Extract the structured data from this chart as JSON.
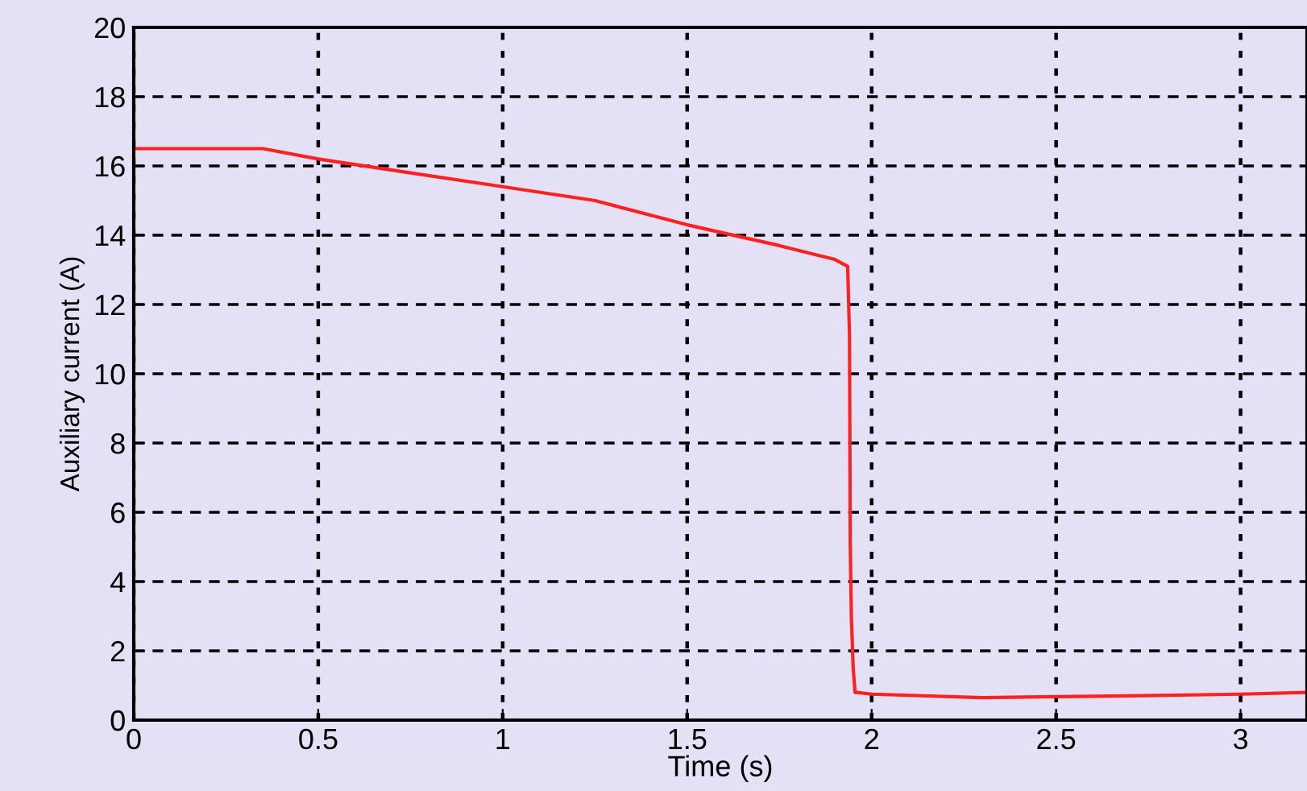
{
  "chart_data": {
    "type": "line",
    "xlabel": "Time (s)",
    "ylabel": "Auxiliary current (A)",
    "xlim": [
      0,
      3.18
    ],
    "xticks": [
      0,
      0.5,
      1,
      1.5,
      2,
      2.5,
      3
    ],
    "ylim": [
      0,
      20
    ],
    "yticks": [
      0,
      2,
      4,
      6,
      8,
      10,
      12,
      14,
      16,
      18,
      20
    ],
    "grid": true,
    "legend": false,
    "line_style": "solid",
    "marker": "none",
    "series": [
      {
        "color": "#ff2020",
        "x": [
          0,
          0.35,
          0.5,
          0.75,
          1.0,
          1.25,
          1.5,
          1.75,
          1.9,
          1.935,
          1.94,
          1.942,
          1.945,
          1.95,
          1.955,
          1.96,
          2.0,
          2.3,
          2.7,
          3.0,
          3.18
        ],
        "values": [
          16.5,
          16.5,
          16.2,
          15.8,
          15.4,
          15.0,
          14.3,
          13.7,
          13.3,
          13.1,
          11.1,
          5.1,
          3.0,
          1.5,
          0.8,
          0.8,
          0.75,
          0.65,
          0.7,
          0.75,
          0.8
        ]
      }
    ]
  }
}
